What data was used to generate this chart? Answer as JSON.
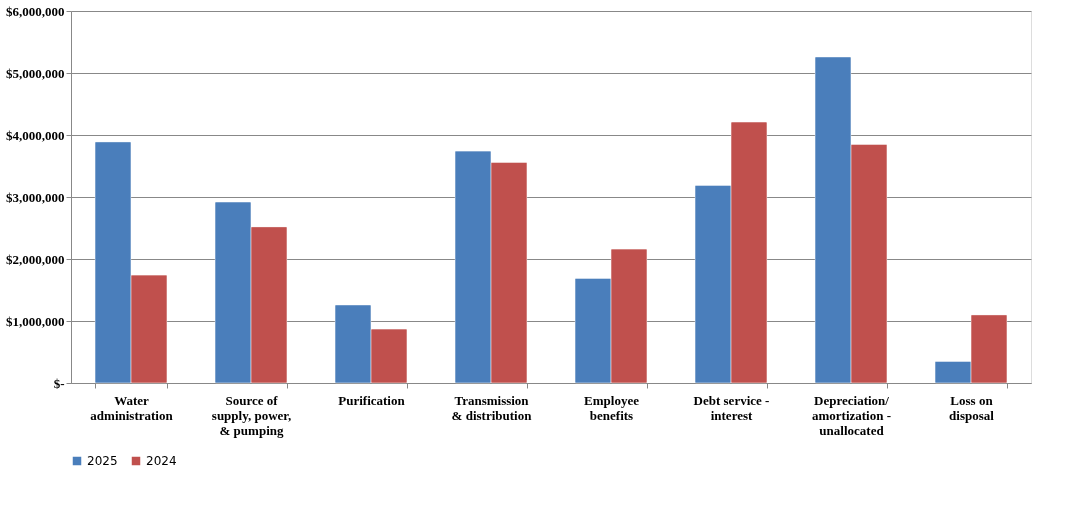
{
  "chart_data": {
    "type": "bar",
    "categories": [
      "Water\nadministration",
      "Source of\nsupply, power,\n& pumping",
      "Purification",
      "Transmission\n& distribution",
      "Employee\nbenefits",
      "Debt service -\ninterest",
      "Depreciation/\namortization -\nunallocated",
      "Loss on\ndisposal"
    ],
    "series": [
      {
        "name": "2025",
        "color": "#4a7ebb",
        "values": [
          3890000,
          2920000,
          1260000,
          3740000,
          1690000,
          3190000,
          5260000,
          350000
        ]
      },
      {
        "name": "2024",
        "color": "#c0504d",
        "values": [
          1740000,
          2520000,
          870000,
          3560000,
          2160000,
          4210000,
          3850000,
          1100000
        ]
      }
    ],
    "ylim": [
      0,
      6000000
    ],
    "yticks": [
      {
        "value": 0,
        "label": "$-"
      },
      {
        "value": 1000000,
        "label": "$1,000,000"
      },
      {
        "value": 2000000,
        "label": "$2,000,000"
      },
      {
        "value": 3000000,
        "label": "$3,000,000"
      },
      {
        "value": 4000000,
        "label": "$4,000,000"
      },
      {
        "value": 5000000,
        "label": "$5,000,000"
      },
      {
        "value": 6000000,
        "label": "$6,000,000"
      }
    ],
    "grid": "y",
    "legend": "bottom"
  }
}
